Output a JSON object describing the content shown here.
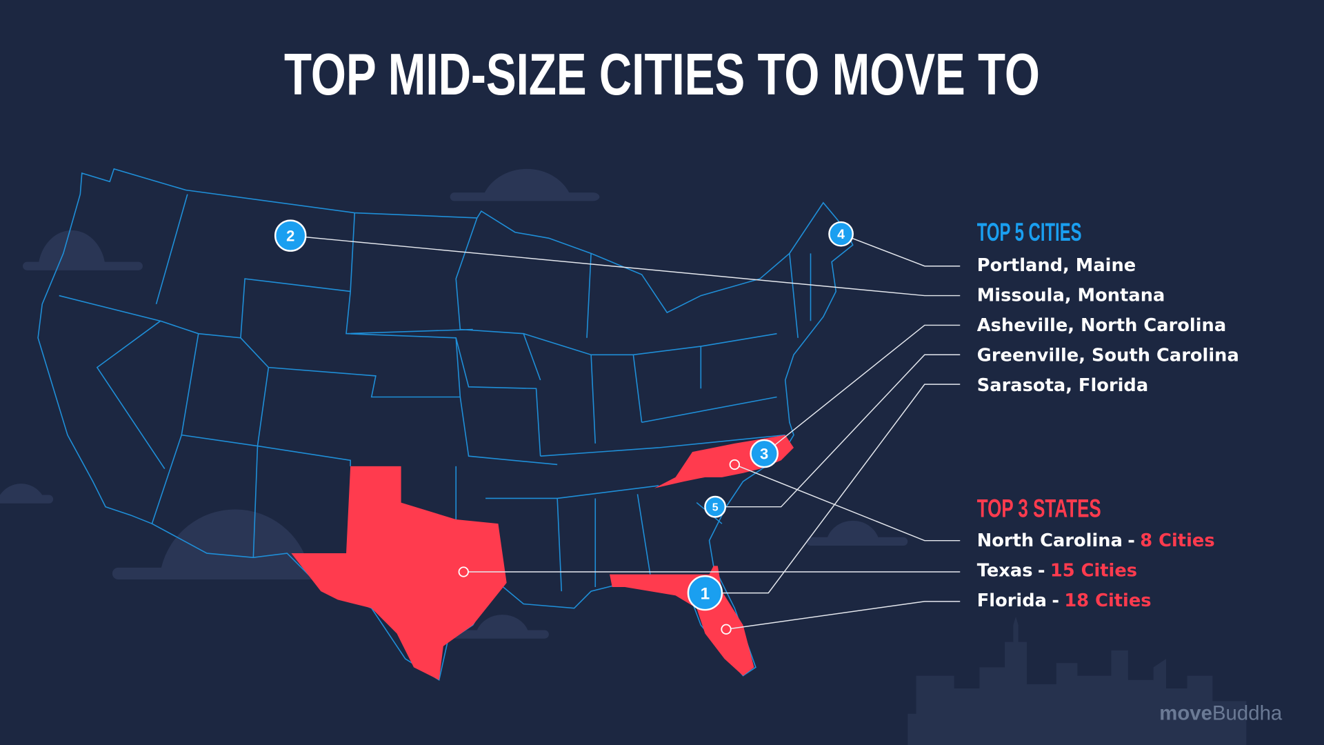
{
  "title": "TOP MID-SIZE CITIES TO MOVE TO",
  "top_cities": {
    "heading": "TOP 5 CITIES",
    "items": [
      "Portland, Maine",
      "Missoula, Montana",
      "Asheville, North Carolina",
      "Greenville, South Carolina",
      "Sarasota, Florida"
    ]
  },
  "top_states": {
    "heading": "TOP 3 STATES",
    "items": [
      {
        "state": "North Carolina",
        "separator": "-",
        "count": "8 Cities"
      },
      {
        "state": "Texas",
        "separator": "-",
        "count": "15 Cities"
      },
      {
        "state": "Florida",
        "separator": "-",
        "count": "18 Cities"
      }
    ]
  },
  "markers": [
    "1",
    "2",
    "3",
    "4",
    "5"
  ],
  "logo": {
    "bold": "move",
    "light": "Buddha"
  }
}
